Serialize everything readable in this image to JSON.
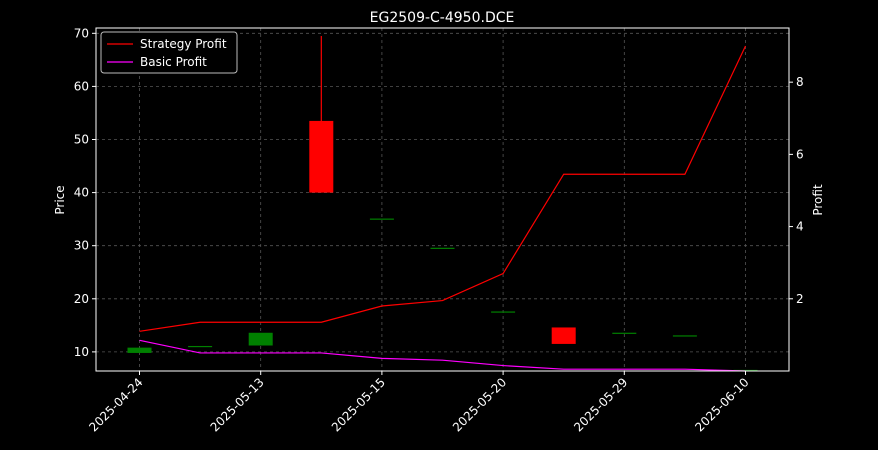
{
  "chart_data": {
    "type": "candlestick",
    "title": "EG2509-C-4950.DCE",
    "ylabel": "Price",
    "y2label": "Profit",
    "ylim": [
      6.4,
      71.0
    ],
    "y2lim": [
      0.0,
      9.5
    ],
    "x_tick_labels": [
      "2025-04-24",
      "2025-05-13",
      "2025-05-15",
      "2025-05-20",
      "2025-05-29",
      "2025-06-10"
    ],
    "y_ticks": [
      10,
      20,
      30,
      40,
      50,
      60,
      70
    ],
    "y2_ticks": [
      2,
      4,
      6,
      8
    ],
    "grid": true,
    "legend_position": "upper-left",
    "colors": {
      "up": "#008000",
      "down": "#ff0000",
      "strategy": "#ff0000",
      "basic": "#ff00ff",
      "grid": "#555555"
    },
    "candles": [
      {
        "x": 0,
        "open": 9.8,
        "close": 10.8,
        "high": 10.8,
        "low": 9.8
      },
      {
        "x": 1,
        "open": 11.0,
        "close": 11.0,
        "high": 11.0,
        "low": 11.0
      },
      {
        "x": 2,
        "open": 11.2,
        "close": 13.6,
        "high": 13.6,
        "low": 11.2
      },
      {
        "x": 3,
        "open": 53.5,
        "close": 40.0,
        "high": 69.5,
        "low": 40.0
      },
      {
        "x": 4,
        "open": 35.0,
        "close": 35.0,
        "high": 35.0,
        "low": 35.0
      },
      {
        "x": 5,
        "open": 29.5,
        "close": 29.5,
        "high": 29.5,
        "low": 29.5
      },
      {
        "x": 6,
        "open": 17.5,
        "close": 17.5,
        "high": 17.5,
        "low": 17.5
      },
      {
        "x": 7,
        "open": 14.6,
        "close": 11.5,
        "high": 14.6,
        "low": 11.5
      },
      {
        "x": 8,
        "open": 13.5,
        "close": 13.5,
        "high": 13.5,
        "low": 13.5
      },
      {
        "x": 9,
        "open": 13.0,
        "close": 13.0,
        "high": 13.0,
        "low": 13.0
      },
      {
        "x": 10,
        "open": 6.5,
        "close": 6.5,
        "high": 6.5,
        "low": 6.5
      }
    ],
    "series": [
      {
        "name": "Strategy Profit",
        "axis": "right",
        "x": [
          0,
          1,
          2,
          3,
          4,
          5,
          6,
          7,
          8,
          9,
          10
        ],
        "values": [
          1.1,
          1.35,
          1.35,
          1.35,
          1.8,
          1.95,
          2.7,
          5.45,
          5.45,
          5.45,
          9.0
        ]
      },
      {
        "name": "Basic Profit",
        "axis": "right",
        "x": [
          0,
          1,
          2,
          3,
          4,
          5,
          6,
          7,
          8,
          9,
          10
        ],
        "values": [
          0.85,
          0.5,
          0.5,
          0.5,
          0.35,
          0.3,
          0.15,
          0.05,
          0.05,
          0.05,
          0.0
        ]
      }
    ]
  }
}
